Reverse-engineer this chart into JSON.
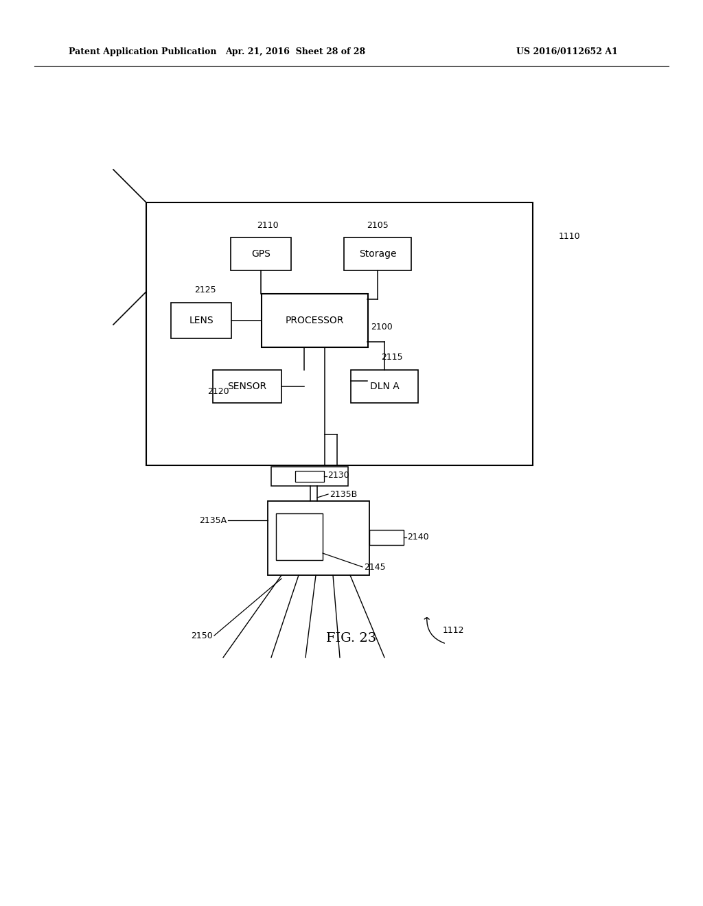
{
  "background_color": "#ffffff",
  "header_left": "Patent Application Publication",
  "header_mid": "Apr. 21, 2016  Sheet 28 of 28",
  "header_right": "US 2016/0112652 A1",
  "fig_label": "FIG. 23"
}
